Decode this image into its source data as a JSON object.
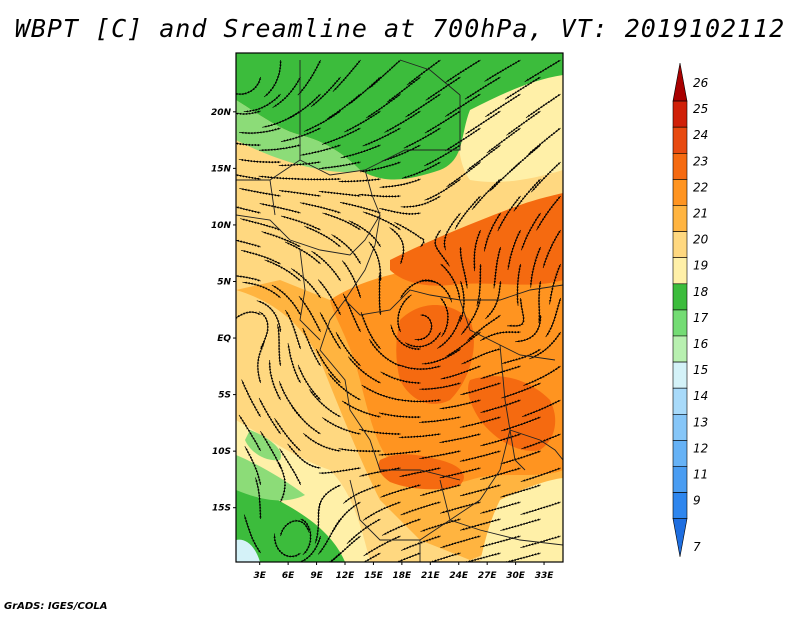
{
  "title": "WBPT [C] and Sreamline at 700hPa, VT: 2019102112",
  "credit": "GrADS: IGES/COLA",
  "map": {
    "lat_labels": [
      "20N",
      "15N",
      "10N",
      "5N",
      "EQ",
      "5S",
      "10S",
      "15S"
    ],
    "lat_values": [
      20,
      15,
      10,
      5,
      0,
      -5,
      -10,
      -15
    ],
    "lon_labels": [
      "3E",
      "6E",
      "9E",
      "12E",
      "15E",
      "18E",
      "21E",
      "24E",
      "27E",
      "30E",
      "33E"
    ],
    "lon_values": [
      3,
      6,
      9,
      12,
      15,
      18,
      21,
      24,
      27,
      30,
      33
    ],
    "lon_range": [
      0.5,
      35
    ],
    "lat_range": [
      -19.8,
      25.2
    ]
  },
  "colorbar": {
    "labels": [
      "7",
      "9",
      "11",
      "12",
      "13",
      "14",
      "15",
      "16",
      "17",
      "18",
      "19",
      "20",
      "21",
      "22",
      "23",
      "24",
      "25",
      "26"
    ],
    "colors": [
      "#1e6ee0",
      "#2e86ee",
      "#4a9df2",
      "#66b2f6",
      "#86c6f8",
      "#a8dafa",
      "#d4f2f8",
      "#b8f0b0",
      "#74dc74",
      "#3cbc3c",
      "#fff0a8",
      "#ffd880",
      "#ffb440",
      "#ff9420",
      "#f56a10",
      "#e84a10",
      "#d02008",
      "#a80000"
    ]
  },
  "field_colors": {
    "c17": "#3cbc3c",
    "c18": "#8cdc78",
    "c19": "#fff0a8",
    "c20": "#ffd880",
    "c21": "#ffb440",
    "c22": "#ff9420",
    "c23": "#f56a10",
    "c15": "#d4f2f8"
  }
}
